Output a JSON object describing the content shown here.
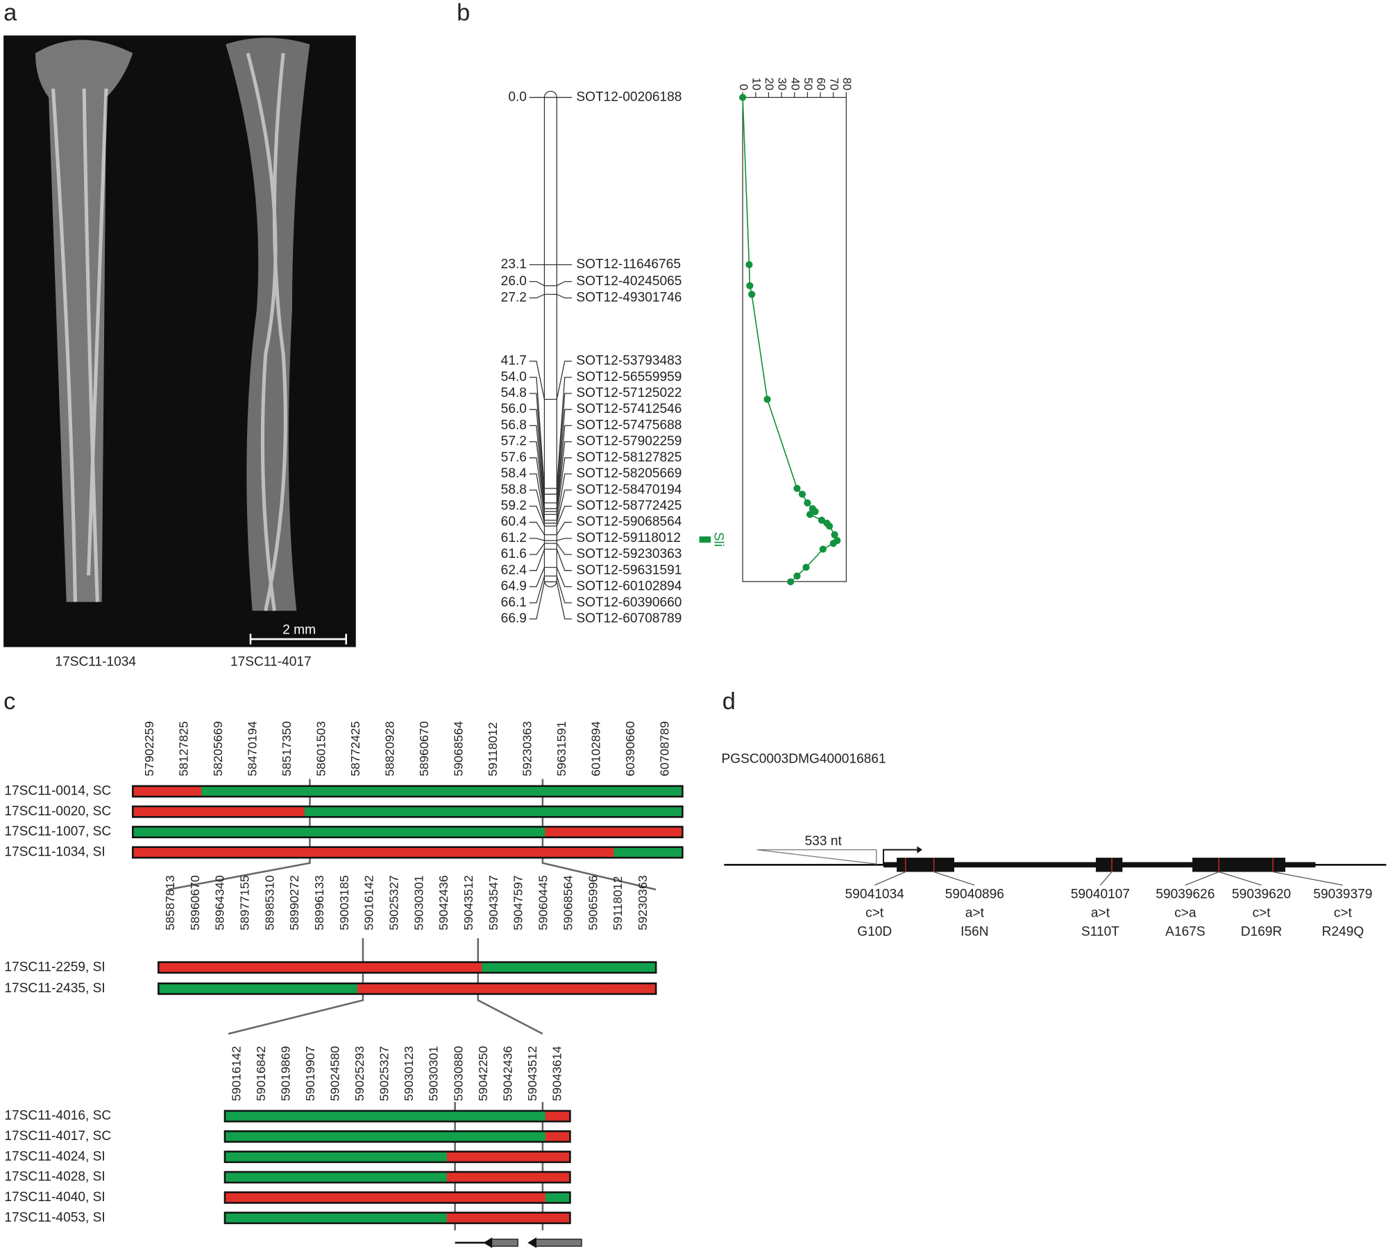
{
  "panel_labels": [
    "a",
    "b",
    "c",
    "d"
  ],
  "panel_a": {
    "samples": [
      "17SC11-1034",
      "17SC11-4017"
    ],
    "scale_bar": "2 mm"
  },
  "panel_b": {
    "markers": [
      {
        "cm": {
          "value": 0,
          "label": "0.0"
        },
        "name": "SOT12-00206188"
      },
      {
        "cm": 23.1,
        "name": "SOT12-11646765"
      },
      {
        "cm": {
          "value": 26,
          "label": "26.0"
        },
        "name": "SOT12-40245065"
      },
      {
        "cm": 27.2,
        "name": "SOT12-49301746"
      },
      {
        "cm": 41.7,
        "name": "SOT12-53793483"
      },
      {
        "cm": {
          "value": 54,
          "label": "54.0"
        },
        "name": "SOT12-56559959"
      },
      {
        "cm": 54.8,
        "name": "SOT12-57125022"
      },
      {
        "cm": {
          "value": 56,
          "label": "56.0"
        },
        "name": "SOT12-57412546"
      },
      {
        "cm": 56.8,
        "name": "SOT12-57475688"
      },
      {
        "cm": 57.2,
        "name": "SOT12-57902259"
      },
      {
        "cm": 57.6,
        "name": "SOT12-58127825"
      },
      {
        "cm": 58.4,
        "name": "SOT12-58205669"
      },
      {
        "cm": 58.8,
        "name": "SOT12-58470194"
      },
      {
        "cm": 59.2,
        "name": "SOT12-58772425"
      },
      {
        "cm": 60.4,
        "name": "SOT12-59068564"
      },
      {
        "cm": 61.2,
        "name": "SOT12-59118012"
      },
      {
        "cm": 61.6,
        "name": "SOT12-59230363"
      },
      {
        "cm": 62.4,
        "name": "SOT12-59631591"
      },
      {
        "cm": 64.9,
        "name": "SOT12-60102894"
      },
      {
        "cm": 66.1,
        "name": "SOT12-60390660"
      },
      {
        "cm": 66.9,
        "name": "SOT12-60708789"
      }
    ],
    "qtl_label": "Sli",
    "lod": {
      "color": "#12933f",
      "xlim": [
        0,
        80
      ],
      "xticks": [
        0,
        10,
        20,
        30,
        40,
        50,
        60,
        70,
        80
      ],
      "values": [
        0,
        5,
        5.5,
        7,
        19,
        42,
        46,
        50,
        54,
        56,
        52,
        61,
        65,
        67,
        71,
        73,
        70,
        62,
        49,
        42,
        37
      ]
    }
  },
  "panel_c": {
    "colors": {
      "red": "#e1302a",
      "green": "#12a04c"
    },
    "tiers": [
      {
        "markers": [
          57902259,
          58127825,
          58205669,
          58470194,
          58517350,
          58601503,
          58772425,
          58820928,
          58960670,
          59068564,
          59118012,
          59230363,
          59631591,
          60102894,
          60390660,
          60708789
        ],
        "rows": [
          {
            "label": "17SC11-0014, SC",
            "colors": [
              "#e1302a",
              "#e1302a",
              "#12a04c",
              "#12a04c",
              "#12a04c",
              "#12a04c",
              "#12a04c",
              "#12a04c",
              "#12a04c",
              "#12a04c",
              "#12a04c",
              "#12a04c",
              "#12a04c",
              "#12a04c",
              "#12a04c",
              "#12a04c"
            ]
          },
          {
            "label": "17SC11-0020, SC",
            "colors": [
              "#e1302a",
              "#e1302a",
              "#e1302a",
              "#e1302a",
              "#e1302a",
              "#12a04c",
              "#12a04c",
              "#12a04c",
              "#12a04c",
              "#12a04c",
              "#12a04c",
              "#12a04c",
              "#12a04c",
              "#12a04c",
              "#12a04c",
              "#12a04c"
            ]
          },
          {
            "label": "17SC11-1007, SC",
            "colors": [
              "#12a04c",
              "#12a04c",
              "#12a04c",
              "#12a04c",
              "#12a04c",
              "#12a04c",
              "#12a04c",
              "#12a04c",
              "#12a04c",
              "#12a04c",
              "#12a04c",
              "#12a04c",
              "#e1302a",
              "#e1302a",
              "#e1302a",
              "#e1302a"
            ]
          },
          {
            "label": "17SC11-1034, SI",
            "colors": [
              "#e1302a",
              "#e1302a",
              "#e1302a",
              "#e1302a",
              "#e1302a",
              "#e1302a",
              "#e1302a",
              "#e1302a",
              "#e1302a",
              "#e1302a",
              "#e1302a",
              "#e1302a",
              "#e1302a",
              "#e1302a",
              "#12a04c",
              "#12a04c"
            ]
          }
        ]
      },
      {
        "markers": [
          58587813,
          58960670,
          58964340,
          58977155,
          58985310,
          58990272,
          58996133,
          59003185,
          59016142,
          59025327,
          59030301,
          59042436,
          59043512,
          59043547,
          59047597,
          59060445,
          59068564,
          59065996,
          59118012,
          59230363
        ],
        "rows": [
          {
            "label": "17SC11-2259, SI",
            "colors": [
              "#e1302a",
              "#e1302a",
              "#e1302a",
              "#e1302a",
              "#e1302a",
              "#e1302a",
              "#e1302a",
              "#e1302a",
              "#e1302a",
              "#e1302a",
              "#e1302a",
              "#e1302a",
              "#e1302a",
              "#12a04c",
              "#12a04c",
              "#12a04c",
              "#12a04c",
              "#12a04c",
              "#12a04c",
              "#12a04c"
            ]
          },
          {
            "label": "17SC11-2435, SI",
            "colors": [
              "#12a04c",
              "#12a04c",
              "#12a04c",
              "#12a04c",
              "#12a04c",
              "#12a04c",
              "#12a04c",
              "#12a04c",
              "#e1302a",
              "#e1302a",
              "#e1302a",
              "#e1302a",
              "#e1302a",
              "#e1302a",
              "#e1302a",
              "#e1302a",
              "#e1302a",
              "#e1302a",
              "#e1302a",
              "#e1302a"
            ]
          }
        ]
      },
      {
        "markers": [
          59016142,
          59016842,
          59019869,
          59019907,
          59024580,
          59025293,
          59025327,
          59030123,
          59030301,
          59030880,
          59042250,
          59042436,
          59043512,
          59043614
        ],
        "rows": [
          {
            "label": "17SC11-4016, SC",
            "colors": [
              "#12a04c",
              "#12a04c",
              "#12a04c",
              "#12a04c",
              "#12a04c",
              "#12a04c",
              "#12a04c",
              "#12a04c",
              "#12a04c",
              "#12a04c",
              "#12a04c",
              "#12a04c",
              "#12a04c",
              "#e1302a"
            ]
          },
          {
            "label": "17SC11-4017, SC",
            "colors": [
              "#12a04c",
              "#12a04c",
              "#12a04c",
              "#12a04c",
              "#12a04c",
              "#12a04c",
              "#12a04c",
              "#12a04c",
              "#12a04c",
              "#12a04c",
              "#12a04c",
              "#12a04c",
              "#12a04c",
              "#e1302a"
            ]
          },
          {
            "label": "17SC11-4024, SI",
            "colors": [
              "#12a04c",
              "#12a04c",
              "#12a04c",
              "#12a04c",
              "#12a04c",
              "#12a04c",
              "#12a04c",
              "#12a04c",
              "#12a04c",
              "#e1302a",
              "#e1302a",
              "#e1302a",
              "#e1302a",
              "#e1302a"
            ]
          },
          {
            "label": "17SC11-4028, SI",
            "colors": [
              "#12a04c",
              "#12a04c",
              "#12a04c",
              "#12a04c",
              "#12a04c",
              "#12a04c",
              "#12a04c",
              "#12a04c",
              "#12a04c",
              "#e1302a",
              "#e1302a",
              "#e1302a",
              "#e1302a",
              "#e1302a"
            ]
          },
          {
            "label": "17SC11-4040, SI",
            "colors": [
              "#e1302a",
              "#e1302a",
              "#e1302a",
              "#e1302a",
              "#e1302a",
              "#e1302a",
              "#e1302a",
              "#e1302a",
              "#e1302a",
              "#e1302a",
              "#e1302a",
              "#e1302a",
              "#e1302a",
              "#12a04c"
            ]
          },
          {
            "label": "17SC11-4053, SI",
            "colors": [
              "#12a04c",
              "#12a04c",
              "#12a04c",
              "#12a04c",
              "#12a04c",
              "#12a04c",
              "#12a04c",
              "#12a04c",
              "#12a04c",
              "#e1302a",
              "#e1302a",
              "#e1302a",
              "#e1302a",
              "#e1302a"
            ]
          }
        ]
      }
    ]
  },
  "panel_d": {
    "gene": "PGSC0003DMG400016861",
    "intron_label": "533 nt",
    "variants": [
      {
        "position": 59041034,
        "change": "c>t",
        "aa": "G10D"
      },
      {
        "position": 59040896,
        "change": "a>t",
        "aa": "I56N"
      },
      {
        "position": 59040107,
        "change": "a>t",
        "aa": "S110T"
      },
      {
        "position": 59039626,
        "change": "c>a",
        "aa": "A167S"
      },
      {
        "position": 59039620,
        "change": "c>t",
        "aa": "D169R"
      },
      {
        "position": 59039379,
        "change": "c>t",
        "aa": "R249Q"
      }
    ]
  }
}
